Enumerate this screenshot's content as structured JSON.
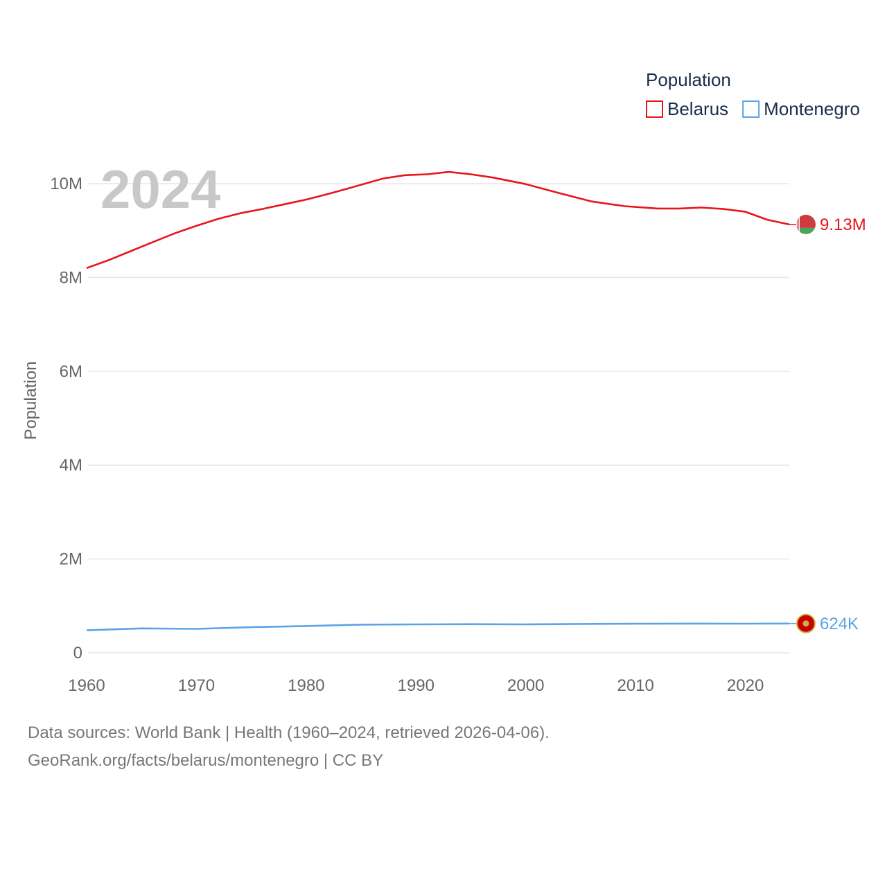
{
  "chart_data": {
    "type": "line",
    "title": "",
    "year_label": "2024",
    "ylabel": "Population",
    "xlabel": "",
    "xlim": [
      1960,
      2024
    ],
    "ylim": [
      0,
      10500000
    ],
    "x_ticks": [
      1960,
      1970,
      1980,
      1990,
      2000,
      2010,
      2020
    ],
    "y_ticks": [
      {
        "value": 0,
        "label": "0"
      },
      {
        "value": 2000000,
        "label": "2M"
      },
      {
        "value": 4000000,
        "label": "4M"
      },
      {
        "value": 6000000,
        "label": "6M"
      },
      {
        "value": 8000000,
        "label": "8M"
      },
      {
        "value": 10000000,
        "label": "10M"
      }
    ],
    "legend": {
      "title": "Population",
      "position": "top-right"
    },
    "series": [
      {
        "name": "Belarus",
        "color": "#e8141b",
        "end_label": "9.13M",
        "flag_icon": "belarus-flag-icon",
        "x": [
          1960,
          1962,
          1964,
          1966,
          1968,
          1970,
          1972,
          1974,
          1976,
          1978,
          1980,
          1982,
          1984,
          1987,
          1989,
          1991,
          1993,
          1995,
          1997,
          2000,
          2003,
          2006,
          2009,
          2012,
          2014,
          2016,
          2018,
          2020,
          2022,
          2024
        ],
        "values": [
          8200000,
          8370000,
          8560000,
          8750000,
          8940000,
          9100000,
          9250000,
          9370000,
          9460000,
          9560000,
          9660000,
          9780000,
          9910000,
          10110000,
          10180000,
          10200000,
          10250000,
          10200000,
          10130000,
          9990000,
          9800000,
          9620000,
          9520000,
          9470000,
          9470000,
          9490000,
          9460000,
          9400000,
          9230000,
          9130000
        ]
      },
      {
        "name": "Montenegro",
        "color": "#5ba3e6",
        "end_label": "624K",
        "flag_icon": "montenegro-flag-icon",
        "x": [
          1960,
          1965,
          1970,
          1975,
          1980,
          1985,
          1990,
          1995,
          2000,
          2005,
          2010,
          2015,
          2020,
          2024
        ],
        "values": [
          480000,
          520000,
          510000,
          545000,
          570000,
          600000,
          605000,
          610000,
          605000,
          614000,
          619000,
          622000,
          620000,
          624000
        ]
      }
    ]
  },
  "footer": {
    "line1": "Data sources: World Bank | Health (1960–2024, retrieved 2026-04-06).",
    "line2": "GeoRank.org/facts/belarus/montenegro | CC BY"
  }
}
